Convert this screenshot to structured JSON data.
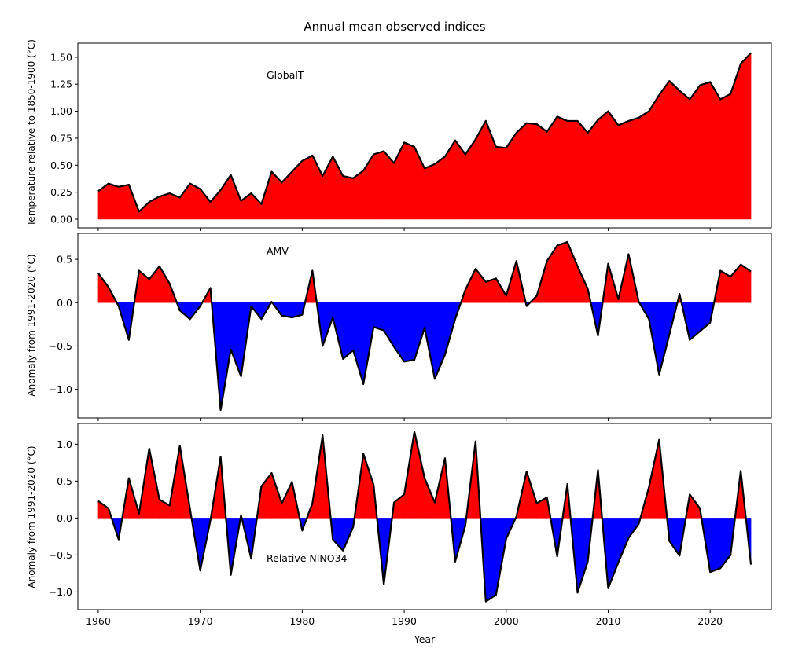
{
  "chart_data": {
    "type": "area",
    "title": "Annual mean observed indices",
    "x": [
      1960,
      1961,
      1962,
      1963,
      1964,
      1965,
      1966,
      1967,
      1968,
      1969,
      1970,
      1971,
      1972,
      1973,
      1974,
      1975,
      1976,
      1977,
      1978,
      1979,
      1980,
      1981,
      1982,
      1983,
      1984,
      1985,
      1986,
      1987,
      1988,
      1989,
      1990,
      1991,
      1992,
      1993,
      1994,
      1995,
      1996,
      1997,
      1998,
      1999,
      2000,
      2001,
      2002,
      2003,
      2004,
      2005,
      2006,
      2007,
      2008,
      2009,
      2010,
      2011,
      2012,
      2013,
      2014,
      2015,
      2016,
      2017,
      2018,
      2019,
      2020,
      2021,
      2022,
      2023,
      2024
    ],
    "xlabel": "Year",
    "xticks": [
      "1960",
      "1970",
      "1980",
      "1990",
      "2000",
      "2010",
      "2020"
    ],
    "xlim": [
      1958,
      2026
    ],
    "colors": {
      "positive": "#ff0000",
      "negative": "#0000ff",
      "line": "#000000"
    },
    "panels": [
      {
        "series_name": "GlobalT",
        "ylabel": "Temperature relative to 1850-1900 (°C)",
        "ylim": [
          -0.08,
          1.63
        ],
        "yticks": [
          "0.00",
          "0.25",
          "0.50",
          "0.75",
          "1.00",
          "1.25",
          "1.50"
        ],
        "values": [
          0.26,
          0.33,
          0.3,
          0.32,
          0.07,
          0.16,
          0.21,
          0.24,
          0.2,
          0.33,
          0.28,
          0.16,
          0.27,
          0.41,
          0.17,
          0.24,
          0.14,
          0.44,
          0.34,
          0.44,
          0.54,
          0.59,
          0.4,
          0.58,
          0.4,
          0.38,
          0.45,
          0.6,
          0.63,
          0.52,
          0.71,
          0.67,
          0.47,
          0.51,
          0.58,
          0.73,
          0.6,
          0.74,
          0.91,
          0.67,
          0.66,
          0.8,
          0.89,
          0.88,
          0.81,
          0.95,
          0.91,
          0.91,
          0.8,
          0.92,
          1.0,
          0.87,
          0.91,
          0.94,
          1.0,
          1.15,
          1.28,
          1.19,
          1.11,
          1.24,
          1.27,
          1.11,
          1.16,
          1.44,
          1.54
        ]
      },
      {
        "series_name": "AMV",
        "ylabel": "Anomaly from 1991-2020 (°C)",
        "ylim": [
          -1.33,
          0.8
        ],
        "yticks": [
          "−1.0",
          "−0.5",
          "0.0",
          "0.5"
        ],
        "values": [
          0.34,
          0.18,
          -0.04,
          -0.43,
          0.37,
          0.27,
          0.42,
          0.22,
          -0.09,
          -0.19,
          -0.04,
          0.17,
          -1.24,
          -0.54,
          -0.85,
          -0.04,
          -0.19,
          0.01,
          -0.15,
          -0.17,
          -0.14,
          0.37,
          -0.5,
          -0.17,
          -0.65,
          -0.55,
          -0.94,
          -0.28,
          -0.32,
          -0.51,
          -0.68,
          -0.66,
          -0.29,
          -0.88,
          -0.6,
          -0.19,
          0.15,
          0.39,
          0.24,
          0.28,
          0.08,
          0.48,
          -0.04,
          0.08,
          0.48,
          0.66,
          0.7,
          0.42,
          0.16,
          -0.38,
          0.45,
          0.04,
          0.56,
          0.01,
          -0.19,
          -0.83,
          -0.37,
          0.1,
          -0.43,
          -0.33,
          -0.23,
          0.37,
          0.3,
          0.44,
          0.36
        ]
      },
      {
        "series_name": "Relative NINO34",
        "ylabel": "Anomaly from 1991-2020 (°C)",
        "ylim": [
          -1.24,
          1.28
        ],
        "yticks": [
          "−1.0",
          "−0.5",
          "0.0",
          "0.5",
          "1.0"
        ],
        "values": [
          0.23,
          0.13,
          -0.29,
          0.54,
          0.06,
          0.94,
          0.25,
          0.17,
          0.98,
          0.12,
          -0.71,
          -0.03,
          0.83,
          -0.77,
          0.04,
          -0.55,
          0.43,
          0.61,
          0.2,
          0.49,
          -0.17,
          0.2,
          1.12,
          -0.29,
          -0.44,
          -0.12,
          0.87,
          0.45,
          -0.9,
          0.21,
          0.32,
          1.17,
          0.54,
          0.21,
          0.81,
          -0.59,
          -0.1,
          1.04,
          -1.13,
          -1.04,
          -0.28,
          0.02,
          0.63,
          0.2,
          0.28,
          -0.52,
          0.46,
          -1.01,
          -0.59,
          0.65,
          -0.95,
          -0.6,
          -0.27,
          -0.08,
          0.42,
          1.06,
          -0.31,
          -0.51,
          0.32,
          0.13,
          -0.73,
          -0.68,
          -0.5,
          0.64,
          -0.63
        ]
      }
    ]
  }
}
